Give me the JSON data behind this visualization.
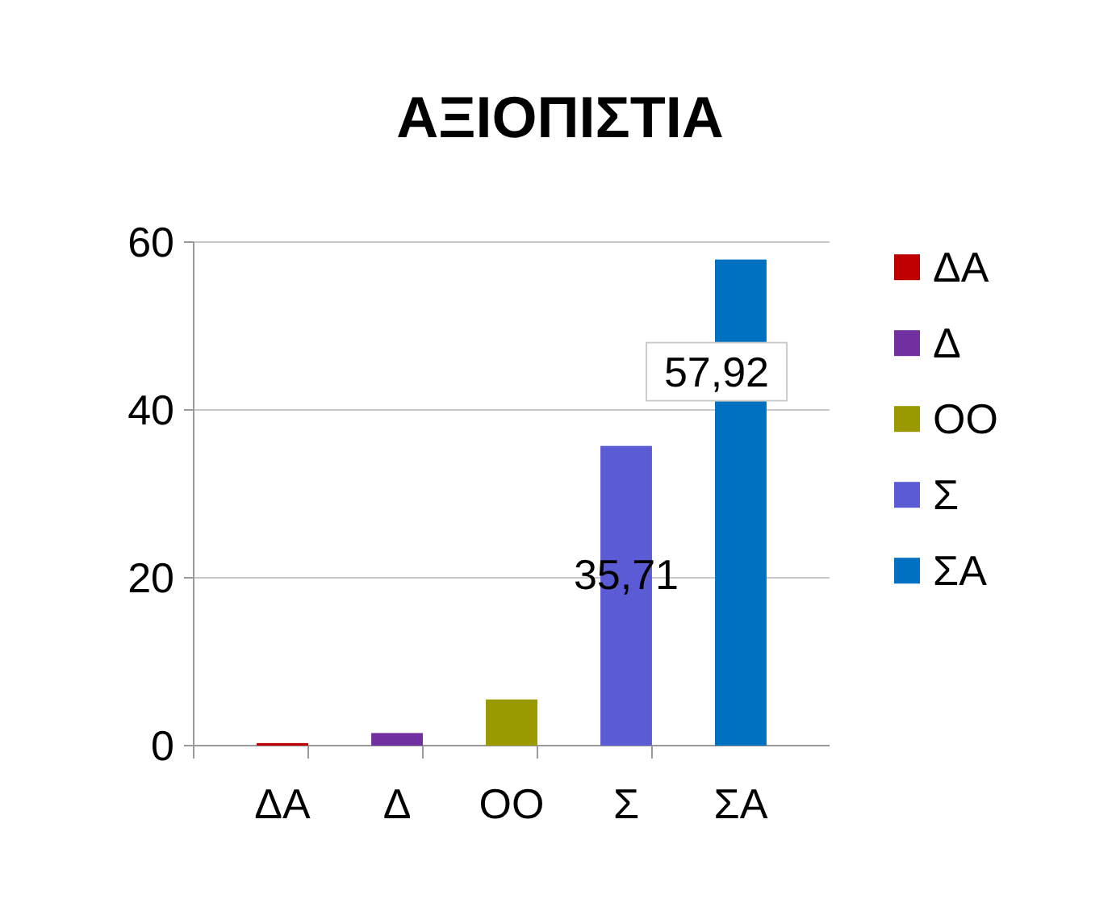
{
  "chart_data": {
    "type": "bar",
    "title": "ΑΞΙΟΠΙΣΤΙΑ",
    "categories": [
      "ΔΑ",
      "Δ",
      "ΟΟ",
      "Σ",
      "ΣΑ"
    ],
    "series": [
      {
        "name": "ΔΑ",
        "color": "#c00000",
        "values": [
          0.3,
          null,
          null,
          null,
          null
        ]
      },
      {
        "name": "Δ",
        "color": "#7030a0",
        "values": [
          null,
          1.5,
          null,
          null,
          null
        ]
      },
      {
        "name": "ΟΟ",
        "color": "#9a9a00",
        "values": [
          null,
          null,
          5.5,
          null,
          null
        ]
      },
      {
        "name": "Σ",
        "color": "#5b5bd6",
        "values": [
          null,
          null,
          null,
          35.71,
          null
        ],
        "value_labels": [
          null,
          null,
          null,
          "35,71",
          null
        ]
      },
      {
        "name": "ΣΑ",
        "color": "#0070c0",
        "values": [
          null,
          null,
          null,
          null,
          57.92
        ],
        "value_labels": [
          null,
          null,
          null,
          null,
          "57,92"
        ]
      }
    ],
    "ylim": [
      0,
      60
    ],
    "yticks": [
      0,
      20,
      40,
      60
    ],
    "grid": "y",
    "legend": "right"
  }
}
